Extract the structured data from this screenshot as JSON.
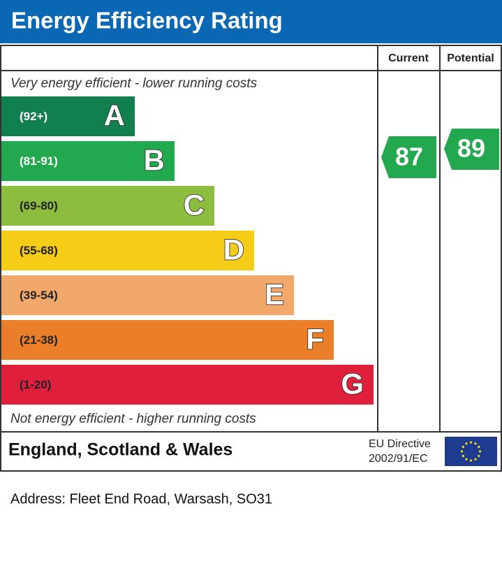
{
  "header": {
    "title": "Energy Efficiency Rating"
  },
  "columns": {
    "current": "Current",
    "potential": "Potential"
  },
  "top_note": "Very energy efficient - lower running costs",
  "bands": [
    {
      "range": "(92+)",
      "letter": "A",
      "color": "#117f4f"
    },
    {
      "range": "(81-91)",
      "letter": "B",
      "color": "#22a94f"
    },
    {
      "range": "(69-80)",
      "letter": "C",
      "color": "#8dbd3f"
    },
    {
      "range": "(55-68)",
      "letter": "D",
      "color": "#f5cd19"
    },
    {
      "range": "(39-54)",
      "letter": "E",
      "color": "#f2a86b"
    },
    {
      "range": "(21-38)",
      "letter": "F",
      "color": "#eb7f29"
    },
    {
      "range": "(1-20)",
      "letter": "G",
      "color": "#e01f3d"
    }
  ],
  "bottom_note": "Not energy efficient - higher running costs",
  "ratings": {
    "current": 87,
    "potential": 89
  },
  "footer": {
    "region": "England, Scotland & Wales",
    "directive": [
      "EU Directive",
      "2002/91/EC"
    ]
  },
  "address": "Address: Fleet End Road, Warsash, SO31"
}
